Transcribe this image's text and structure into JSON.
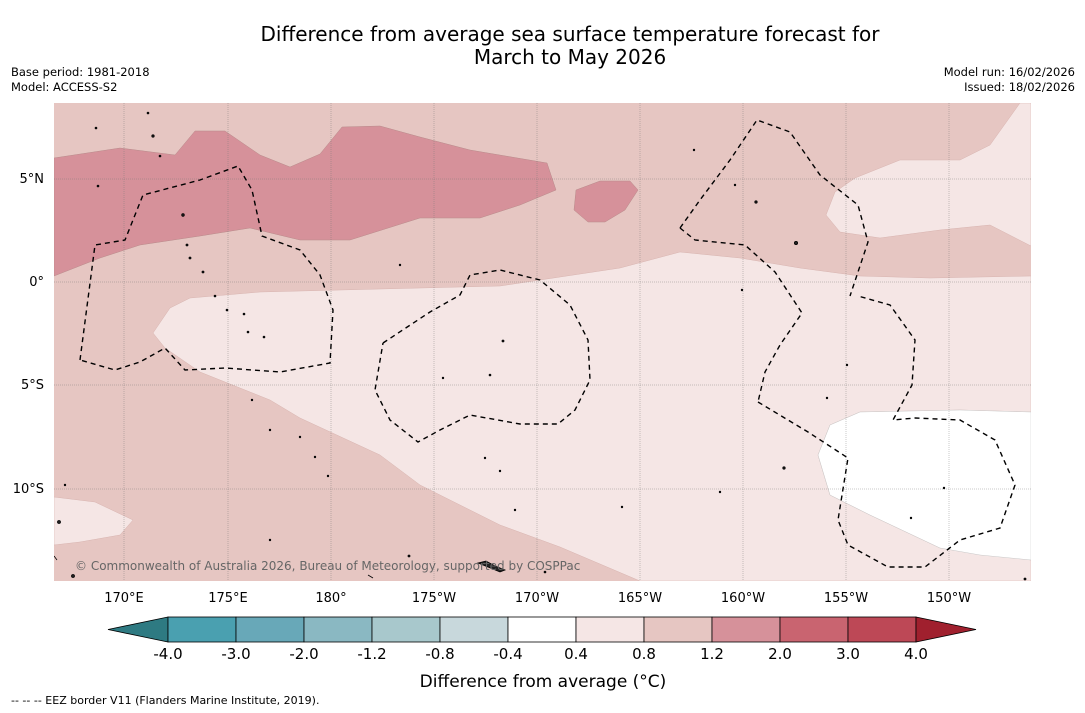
{
  "title_line1": "Difference from average sea surface temperature forecast for",
  "title_line2": "March to May 2026",
  "meta_left": {
    "base_period": "Base period: 1981-2018",
    "model": "Model: ACCESS-S2"
  },
  "meta_right": {
    "model_run": "Model run: 16/02/2026",
    "issued": "Issued: 18/02/2026"
  },
  "lat_labels": [
    "5°N",
    "0°",
    "5°S",
    "10°S"
  ],
  "lon_labels": [
    "170°E",
    "175°E",
    "180°",
    "175°W",
    "170°W",
    "165°W",
    "160°W",
    "155°W",
    "150°W"
  ],
  "copyright": "© Commonwealth of Australia 2026, Bureau of Meteorology, supported by COSPPac",
  "colorbar": {
    "ticks": [
      "-4.0",
      "-3.0",
      "-2.0",
      "-1.2",
      "-0.8",
      "-0.4",
      "0.4",
      "0.8",
      "1.2",
      "2.0",
      "3.0",
      "4.0"
    ],
    "colors": [
      "#2e7a82",
      "#4aa0b0",
      "#68a8b8",
      "#8ab8c2",
      "#a8c8cc",
      "#c8d8dc",
      "#ffffff",
      "#f5e6e5",
      "#e6c6c2",
      "#d6919a",
      "#c96470",
      "#bd4856",
      "#a0202e"
    ],
    "label": "Difference from average (°C)"
  },
  "footnote": "-- -- -- EEZ border V11 (Flanders Marine Institute, 2019)."
}
